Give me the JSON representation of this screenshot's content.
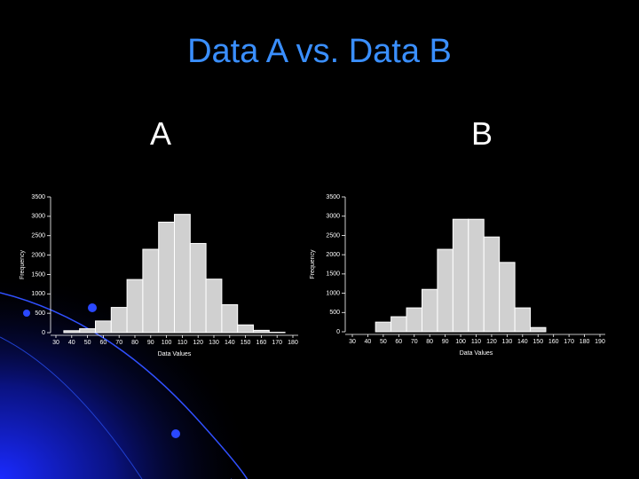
{
  "header": {
    "title": "Data A vs. Data B",
    "labels": [
      "A",
      "B"
    ]
  },
  "chart_data": [
    {
      "type": "histogram",
      "xlabel": "Data Values",
      "ylabel": "Frequency",
      "color": "#d0d0d0",
      "bins": [
        35,
        45,
        55,
        65,
        75,
        85,
        95,
        105,
        115,
        125,
        135,
        145,
        155,
        165,
        175
      ],
      "values": [
        50,
        100,
        300,
        650,
        1370,
        2150,
        2850,
        3050,
        2300,
        1380,
        720,
        200,
        60,
        10
      ],
      "xlim": [
        30,
        180
      ],
      "xticks": [
        30,
        40,
        50,
        60,
        70,
        80,
        90,
        100,
        110,
        120,
        130,
        140,
        150,
        160,
        170,
        180
      ],
      "ylim": [
        0,
        3500
      ],
      "yticks": [
        0,
        500,
        1000,
        1500,
        2000,
        2500,
        3000,
        3500
      ]
    },
    {
      "type": "histogram",
      "xlabel": "Data Values",
      "ylabel": "Frequency",
      "color": "#d0d0d0",
      "bins": [
        45,
        55,
        65,
        75,
        85,
        95,
        105,
        115,
        125,
        135,
        145,
        155
      ],
      "values": [
        250,
        390,
        620,
        1100,
        2140,
        2920,
        2920,
        2460,
        1800,
        620,
        110
      ],
      "xlim": [
        30,
        190
      ],
      "xticks": [
        30,
        40,
        50,
        60,
        70,
        80,
        90,
        100,
        110,
        120,
        130,
        140,
        150,
        160,
        170,
        180,
        190
      ],
      "ylim": [
        0,
        3500
      ],
      "yticks": [
        0,
        500,
        1000,
        1500,
        2000,
        2500,
        3000,
        3500
      ]
    }
  ]
}
